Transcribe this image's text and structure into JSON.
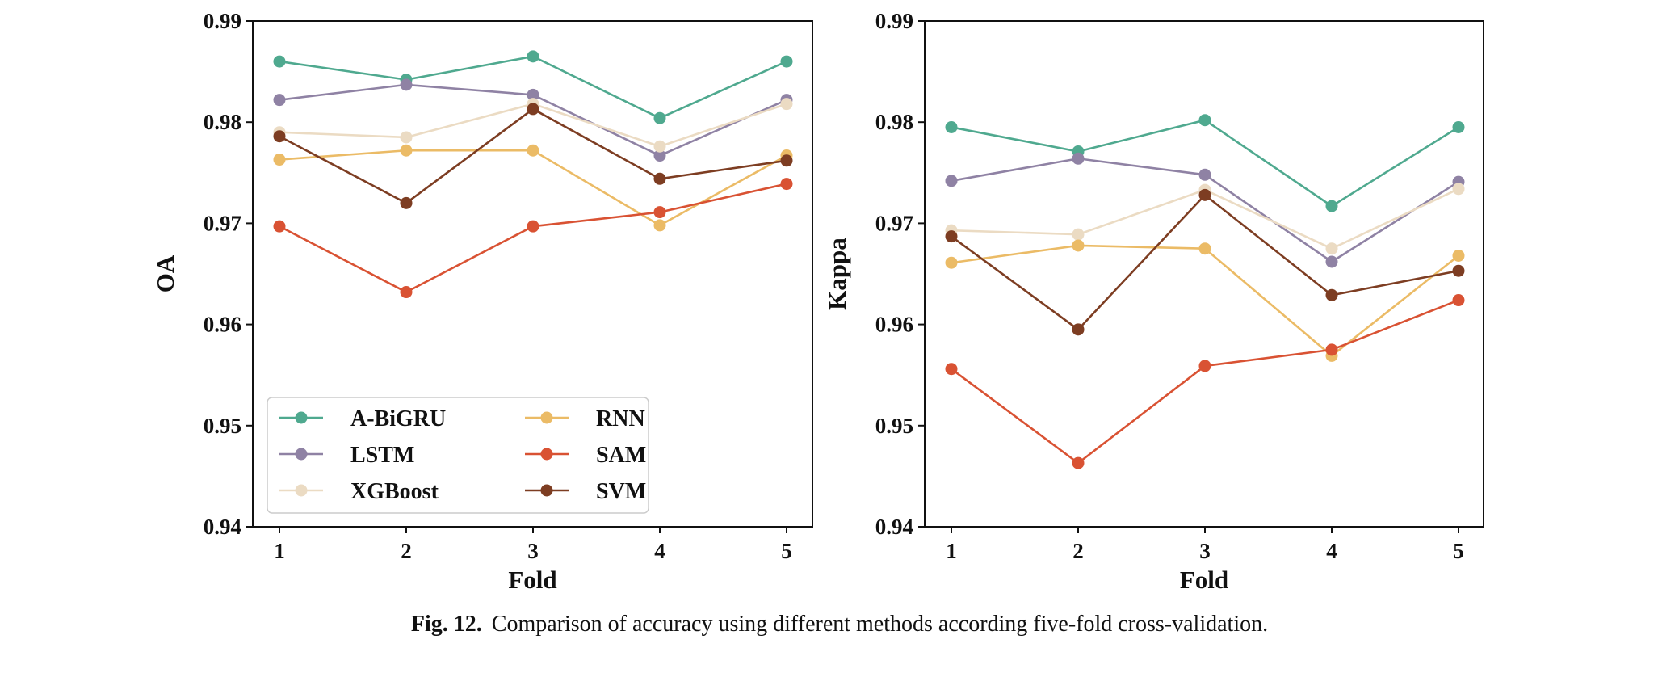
{
  "caption": {
    "label": "Fig. 12.",
    "text": "Comparison of accuracy using different methods according five-fold cross-validation."
  },
  "chart_data": [
    {
      "type": "line",
      "xlabel": "Fold",
      "ylabel": "OA",
      "x": [
        1,
        2,
        3,
        4,
        5
      ],
      "ylim": [
        0.94,
        0.99
      ],
      "yticks": [
        "0.94",
        "0.95",
        "0.96",
        "0.97",
        "0.98",
        "0.99"
      ],
      "legend": {
        "placement": "lower-left",
        "columns": 2
      },
      "series": [
        {
          "name": "A-BiGRU",
          "color": "#4fa98f",
          "values": [
            0.986,
            0.9842,
            0.9865,
            0.9804,
            0.986
          ]
        },
        {
          "name": "LSTM",
          "color": "#8f82a4",
          "values": [
            0.9822,
            0.9837,
            0.9827,
            0.9767,
            0.9822
          ]
        },
        {
          "name": "XGBoost",
          "color": "#ebdbc3",
          "values": [
            0.979,
            0.9785,
            0.9818,
            0.9776,
            0.9818
          ]
        },
        {
          "name": "RNN",
          "color": "#ebbb66",
          "values": [
            0.9763,
            0.9772,
            0.9772,
            0.9698,
            0.9767
          ]
        },
        {
          "name": "SAM",
          "color": "#d95233",
          "values": [
            0.9697,
            0.9632,
            0.9697,
            0.9711,
            0.9739
          ]
        },
        {
          "name": "SVM",
          "color": "#7d3d22",
          "values": [
            0.9786,
            0.972,
            0.9813,
            0.9744,
            0.9762
          ]
        }
      ]
    },
    {
      "type": "line",
      "xlabel": "Fold",
      "ylabel": "Kappa",
      "x": [
        1,
        2,
        3,
        4,
        5
      ],
      "ylim": [
        0.94,
        0.99
      ],
      "yticks": [
        "0.94",
        "0.95",
        "0.96",
        "0.97",
        "0.98",
        "0.99"
      ],
      "series": [
        {
          "name": "A-BiGRU",
          "color": "#4fa98f",
          "values": [
            0.9795,
            0.9771,
            0.9802,
            0.9717,
            0.9795
          ]
        },
        {
          "name": "LSTM",
          "color": "#8f82a4",
          "values": [
            0.9742,
            0.9764,
            0.9748,
            0.9662,
            0.9741
          ]
        },
        {
          "name": "XGBoost",
          "color": "#ebdbc3",
          "values": [
            0.9693,
            0.9689,
            0.9733,
            0.9675,
            0.9734
          ]
        },
        {
          "name": "RNN",
          "color": "#ebbb66",
          "values": [
            0.9661,
            0.9678,
            0.9675,
            0.9569,
            0.9668
          ]
        },
        {
          "name": "SAM",
          "color": "#d95233",
          "values": [
            0.9556,
            0.9463,
            0.9559,
            0.9575,
            0.9624
          ]
        },
        {
          "name": "SVM",
          "color": "#7d3d22",
          "values": [
            0.9687,
            0.9595,
            0.9728,
            0.9629,
            0.9653
          ]
        }
      ]
    }
  ]
}
